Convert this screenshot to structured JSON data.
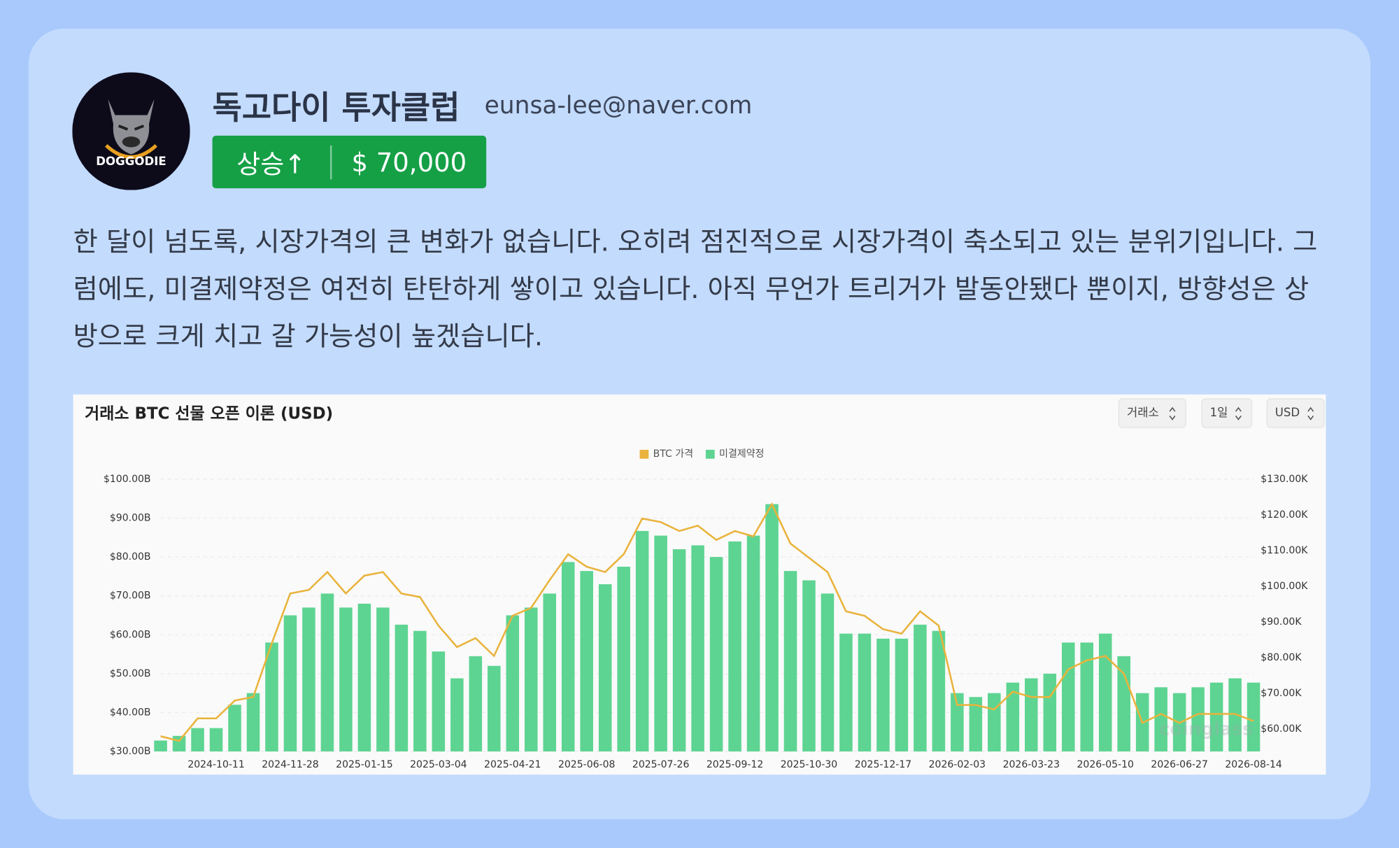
{
  "header": {
    "logo_text": "DOGGODIE",
    "title": "독고다이 투자클럽",
    "email": "eunsa-lee@naver.com",
    "badge": {
      "trend": "상승↑",
      "price": "$ 70,000"
    }
  },
  "body": {
    "text": "한 달이 넘도록, 시장가격의 큰 변화가 없습니다. 오히려 점진적으로 시장가격이 축소되고 있는 분위기입니다. 그럼에도, 미결제약정은 여전히 탄탄하게 쌓이고 있습니다. 아직 무언가 트리거가 발동안됐다 뿐이지, 방향성은 상방으로 크게 치고 갈 가능성이 높겠습니다."
  },
  "chart_data": {
    "type": "combo",
    "title": "거래소 BTC 선물 오픈 이론 (USD)",
    "controls": [
      "거래소",
      "1일",
      "USD"
    ],
    "watermark": "coinglass",
    "legend": "top",
    "grid": true,
    "categories": [
      null,
      null,
      null,
      "2024-10-11",
      null,
      null,
      null,
      "2024-11-28",
      null,
      null,
      null,
      "2025-01-15",
      null,
      null,
      null,
      "2025-03-04",
      null,
      null,
      null,
      "2025-04-21",
      null,
      null,
      null,
      "2025-06-08",
      null,
      null,
      null,
      "2025-07-26",
      null,
      null,
      null,
      "2025-09-12",
      null,
      null,
      null,
      "2025-10-30",
      null,
      null,
      null,
      "2025-12-17",
      null,
      null,
      null,
      "2026-02-03",
      null,
      null,
      null,
      "2026-03-23",
      null,
      null,
      null,
      "2026-05-10",
      null,
      null,
      null,
      "2026-06-27",
      null,
      null,
      null,
      "2026-08-14"
    ],
    "series": [
      {
        "name": "BTC 가격",
        "type": "line",
        "axis": "y2",
        "color": "#e9b33c",
        "values": [
          58,
          56.7,
          63,
          63,
          68,
          69,
          84,
          98,
          99,
          104,
          98,
          103,
          104,
          98,
          97,
          89,
          83,
          85.5,
          80.5,
          91.75,
          94,
          101.75,
          109,
          105.5,
          104,
          109,
          119,
          118,
          115.5,
          117,
          113,
          115.5,
          114,
          123,
          112,
          108,
          104,
          93,
          91.75,
          88,
          86.75,
          93,
          89,
          66.75,
          66.75,
          65.5,
          70.5,
          69,
          69,
          76.75,
          79.25,
          80.5,
          75.5,
          61.75,
          64.25,
          61.75,
          64.25,
          64.25,
          64.25,
          62.25
        ]
      },
      {
        "name": "미결제약정",
        "type": "bar",
        "color": "#5ed492",
        "values": [
          32.8,
          34,
          36,
          36,
          42,
          45,
          58,
          65,
          67,
          70.6,
          67,
          68,
          67,
          62.6,
          61,
          55.7,
          48.8,
          54.5,
          52,
          65,
          67,
          70.6,
          78.7,
          76.4,
          73,
          77.5,
          86.7,
          85.5,
          82,
          83,
          80,
          84,
          85.5,
          93.6,
          76.4,
          74,
          70.6,
          60.3,
          60.3,
          59,
          59,
          62.6,
          61,
          45,
          44,
          45,
          47.7,
          48.8,
          50,
          58,
          58,
          60.3,
          54.5,
          45,
          46.5,
          45,
          46.5,
          47.7,
          48.8,
          47.7
        ]
      }
    ],
    "ylim": [
      30,
      100
    ],
    "yticks": [
      {
        "value": 30,
        "label": "$30.00B"
      },
      {
        "value": 40,
        "label": "$40.00B"
      },
      {
        "value": 50,
        "label": "$50.00B"
      },
      {
        "value": 60,
        "label": "$60.00B"
      },
      {
        "value": 70,
        "label": "$70.00B"
      },
      {
        "value": 80,
        "label": "$80.00B"
      },
      {
        "value": 90,
        "label": "$90.00B"
      },
      {
        "value": 100,
        "label": "$100.00B"
      }
    ],
    "y2lim": [
      53.75,
      130
    ],
    "y2ticks": [
      {
        "value": 60,
        "label": "$60.00K"
      },
      {
        "value": 70,
        "label": "$70.00K"
      },
      {
        "value": 80,
        "label": "$80.00K"
      },
      {
        "value": 90,
        "label": "$90.00K"
      },
      {
        "value": 100,
        "label": "$100.00K"
      },
      {
        "value": 110,
        "label": "$110.00K"
      },
      {
        "value": 120,
        "label": "$120.00K"
      },
      {
        "value": 130,
        "label": "$130.00K"
      }
    ]
  }
}
